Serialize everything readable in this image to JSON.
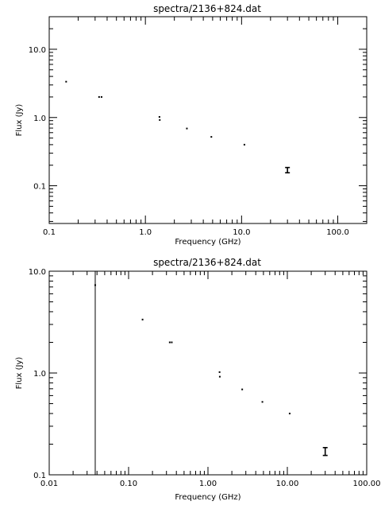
{
  "chart_data": [
    {
      "type": "scatter",
      "title": "spectra/2136+824.dat",
      "xlabel": "Frequency (GHz)",
      "ylabel": "Flux (Jy)",
      "xscale": "log",
      "yscale": "log",
      "xlim": [
        0.1,
        200
      ],
      "ylim": [
        0.028,
        30
      ],
      "x_ticks": [
        0.1,
        1.0,
        10.0,
        100.0
      ],
      "x_tick_labels": [
        "0.1",
        "1.0",
        "10.0",
        "100.0"
      ],
      "y_ticks": [
        0.1,
        1.0,
        10.0
      ],
      "y_tick_labels": [
        "0.1",
        "1.0",
        "10.0"
      ],
      "points": [
        {
          "x": 0.15,
          "y": 3.35
        },
        {
          "x": 0.33,
          "y": 2.0
        },
        {
          "x": 0.35,
          "y": 2.0
        },
        {
          "x": 1.4,
          "y": 1.02
        },
        {
          "x": 1.41,
          "y": 0.92
        },
        {
          "x": 2.7,
          "y": 0.69
        },
        {
          "x": 4.85,
          "y": 0.52
        },
        {
          "x": 10.7,
          "y": 0.4
        },
        {
          "x": 30.0,
          "y": 0.17,
          "yerr": [
            0.155,
            0.185
          ]
        }
      ]
    },
    {
      "type": "scatter",
      "title": "spectra/2136+824.dat",
      "xlabel": "Frequency (GHz)",
      "ylabel": "Flux (Jy)",
      "xscale": "log",
      "yscale": "log",
      "xlim": [
        0.01,
        100
      ],
      "ylim": [
        0.1,
        10
      ],
      "x_ticks": [
        0.01,
        0.1,
        1.0,
        10.0,
        100.0
      ],
      "x_tick_labels": [
        "0.01",
        "0.10",
        "1.00",
        "10.00",
        "100.00"
      ],
      "y_ticks": [
        0.1,
        1.0,
        10.0
      ],
      "y_tick_labels": [
        "0.1",
        "1.0",
        "10.0"
      ],
      "vertical_line_x": 0.038,
      "points": [
        {
          "x": 0.038,
          "y": 7.3
        },
        {
          "x": 0.15,
          "y": 3.35
        },
        {
          "x": 0.33,
          "y": 2.0
        },
        {
          "x": 0.35,
          "y": 2.0
        },
        {
          "x": 1.4,
          "y": 1.02
        },
        {
          "x": 1.41,
          "y": 0.92
        },
        {
          "x": 2.7,
          "y": 0.69
        },
        {
          "x": 4.85,
          "y": 0.52
        },
        {
          "x": 10.7,
          "y": 0.4
        },
        {
          "x": 30.0,
          "y": 0.17,
          "yerr": [
            0.155,
            0.185
          ]
        }
      ]
    }
  ]
}
